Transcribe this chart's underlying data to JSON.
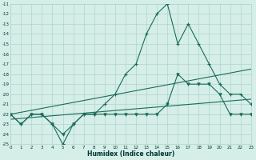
{
  "xlabel": "Humidex (Indice chaleur)",
  "xlim": [
    0,
    23
  ],
  "ylim": [
    -25,
    -11
  ],
  "yticks": [
    -25,
    -24,
    -23,
    -22,
    -21,
    -20,
    -19,
    -18,
    -17,
    -16,
    -15,
    -14,
    -13,
    -12,
    -11
  ],
  "xticks": [
    0,
    1,
    2,
    3,
    4,
    5,
    6,
    7,
    8,
    9,
    10,
    11,
    12,
    13,
    14,
    15,
    16,
    17,
    18,
    19,
    20,
    21,
    22,
    23
  ],
  "bg_color": "#d5eee8",
  "grid_color": "#b0d4cc",
  "line_color": "#1a6b5a",
  "main_x": [
    0,
    1,
    2,
    3,
    4,
    5,
    6,
    7,
    8,
    9,
    10,
    11,
    12,
    13,
    14,
    15,
    16,
    17,
    18,
    19,
    20,
    21,
    22,
    23
  ],
  "main_y": [
    -22,
    -23,
    -22,
    -22,
    -23,
    -25,
    -23,
    -22,
    -22,
    -21,
    -20,
    -18,
    -17,
    -14,
    -12,
    -11,
    -15,
    -13,
    -15,
    -17,
    -19,
    -20,
    -20,
    -21
  ],
  "line2_x": [
    0,
    1,
    2,
    3,
    4,
    5,
    6,
    7,
    8,
    9,
    10,
    11,
    12,
    13,
    14,
    15,
    16,
    17,
    18,
    19,
    20,
    21,
    22,
    23
  ],
  "line2_y": [
    -22,
    -23,
    -22,
    -22,
    -23,
    -24,
    -23,
    -22,
    -22,
    -22,
    -22,
    -22,
    -22,
    -22,
    -22,
    -21,
    -18,
    -19,
    -19,
    -19,
    -20,
    -22,
    -22,
    -22
  ],
  "trend1_x": [
    0,
    23
  ],
  "trend1_y": [
    -22.0,
    -17.5
  ],
  "trend2_x": [
    0,
    23
  ],
  "trend2_y": [
    -22.5,
    -20.5
  ]
}
